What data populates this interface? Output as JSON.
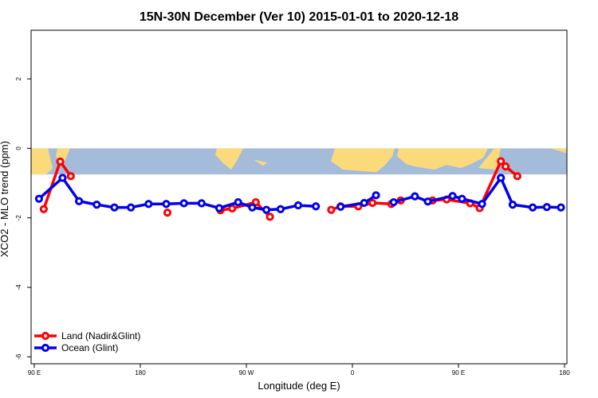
{
  "chart_data": {
    "type": "line",
    "title": "15N-30N December (Ver 10)   2015-01-01 to 2020-12-18",
    "xlabel": "Longitude (deg E)",
    "ylabel": "XCO2 - MLO trend (ppm)",
    "xlim": [
      90,
      540
    ],
    "ylim": [
      -6.2,
      3.4
    ],
    "x_ticks": [
      90,
      180,
      270,
      360,
      450,
      540
    ],
    "x_tick_labels": [
      "90 E",
      "180",
      "90 W",
      "0",
      "90 E",
      "180"
    ],
    "y_ticks": [
      2,
      0,
      -2,
      -4,
      -6
    ],
    "y_tick_labels": [
      "2",
      "0",
      "-2",
      "-4",
      "-6"
    ],
    "map_strip": {
      "lat_range": [
        15,
        30
      ],
      "y_range": [
        0,
        -0.75
      ],
      "ocean_color": "#A5BBDA",
      "land_color": "#FADA7A"
    },
    "legend": {
      "position": "bottom-left"
    },
    "series": [
      {
        "name": "Land (Nadir&Glint)",
        "color": "#FF0000",
        "segments": [
          {
            "x": [
              98,
              112,
              121
            ],
            "y": [
              -1.75,
              -0.38,
              -0.8
            ]
          },
          {
            "x": [
              203
            ],
            "y": [
              -1.85
            ]
          },
          {
            "x": [
              248,
              258,
              278,
              290
            ],
            "y": [
              -1.78,
              -1.73,
              -1.55,
              -1.97
            ]
          },
          {
            "x": [
              342,
              350,
              365,
              377,
              393,
              401
            ],
            "y": [
              -1.77,
              -1.67,
              -1.67,
              -1.57,
              -1.6,
              -1.5
            ]
          },
          {
            "x": [
              428,
              440,
              460,
              468,
              486,
              490,
              500
            ],
            "y": [
              -1.5,
              -1.47,
              -1.58,
              -1.72,
              -0.37,
              -0.52,
              -0.8
            ]
          }
        ]
      },
      {
        "name": "Ocean (Glint)",
        "color": "#0000EE",
        "segments": [
          {
            "x": [
              94,
              114,
              128,
              143,
              158,
              172,
              187,
              202,
              217,
              232,
              247,
              263,
              275,
              287,
              299,
              314,
              329
            ],
            "y": [
              -1.45,
              -0.85,
              -1.52,
              -1.62,
              -1.7,
              -1.7,
              -1.6,
              -1.6,
              -1.58,
              -1.58,
              -1.72,
              -1.55,
              -1.7,
              -1.77,
              -1.75,
              -1.64,
              -1.67
            ]
          },
          {
            "x": [
              350,
              370,
              380
            ],
            "y": [
              -1.68,
              -1.57,
              -1.35
            ]
          },
          {
            "x": [
              395,
              413,
              424,
              445,
              453,
              470,
              486,
              486,
              496,
              513,
              525,
              537
            ],
            "y": [
              -1.55,
              -1.38,
              -1.53,
              -1.37,
              -1.45,
              -1.6,
              -0.85,
              -0.85,
              -1.62,
              -1.7,
              -1.69,
              -1.7
            ]
          }
        ]
      }
    ]
  }
}
